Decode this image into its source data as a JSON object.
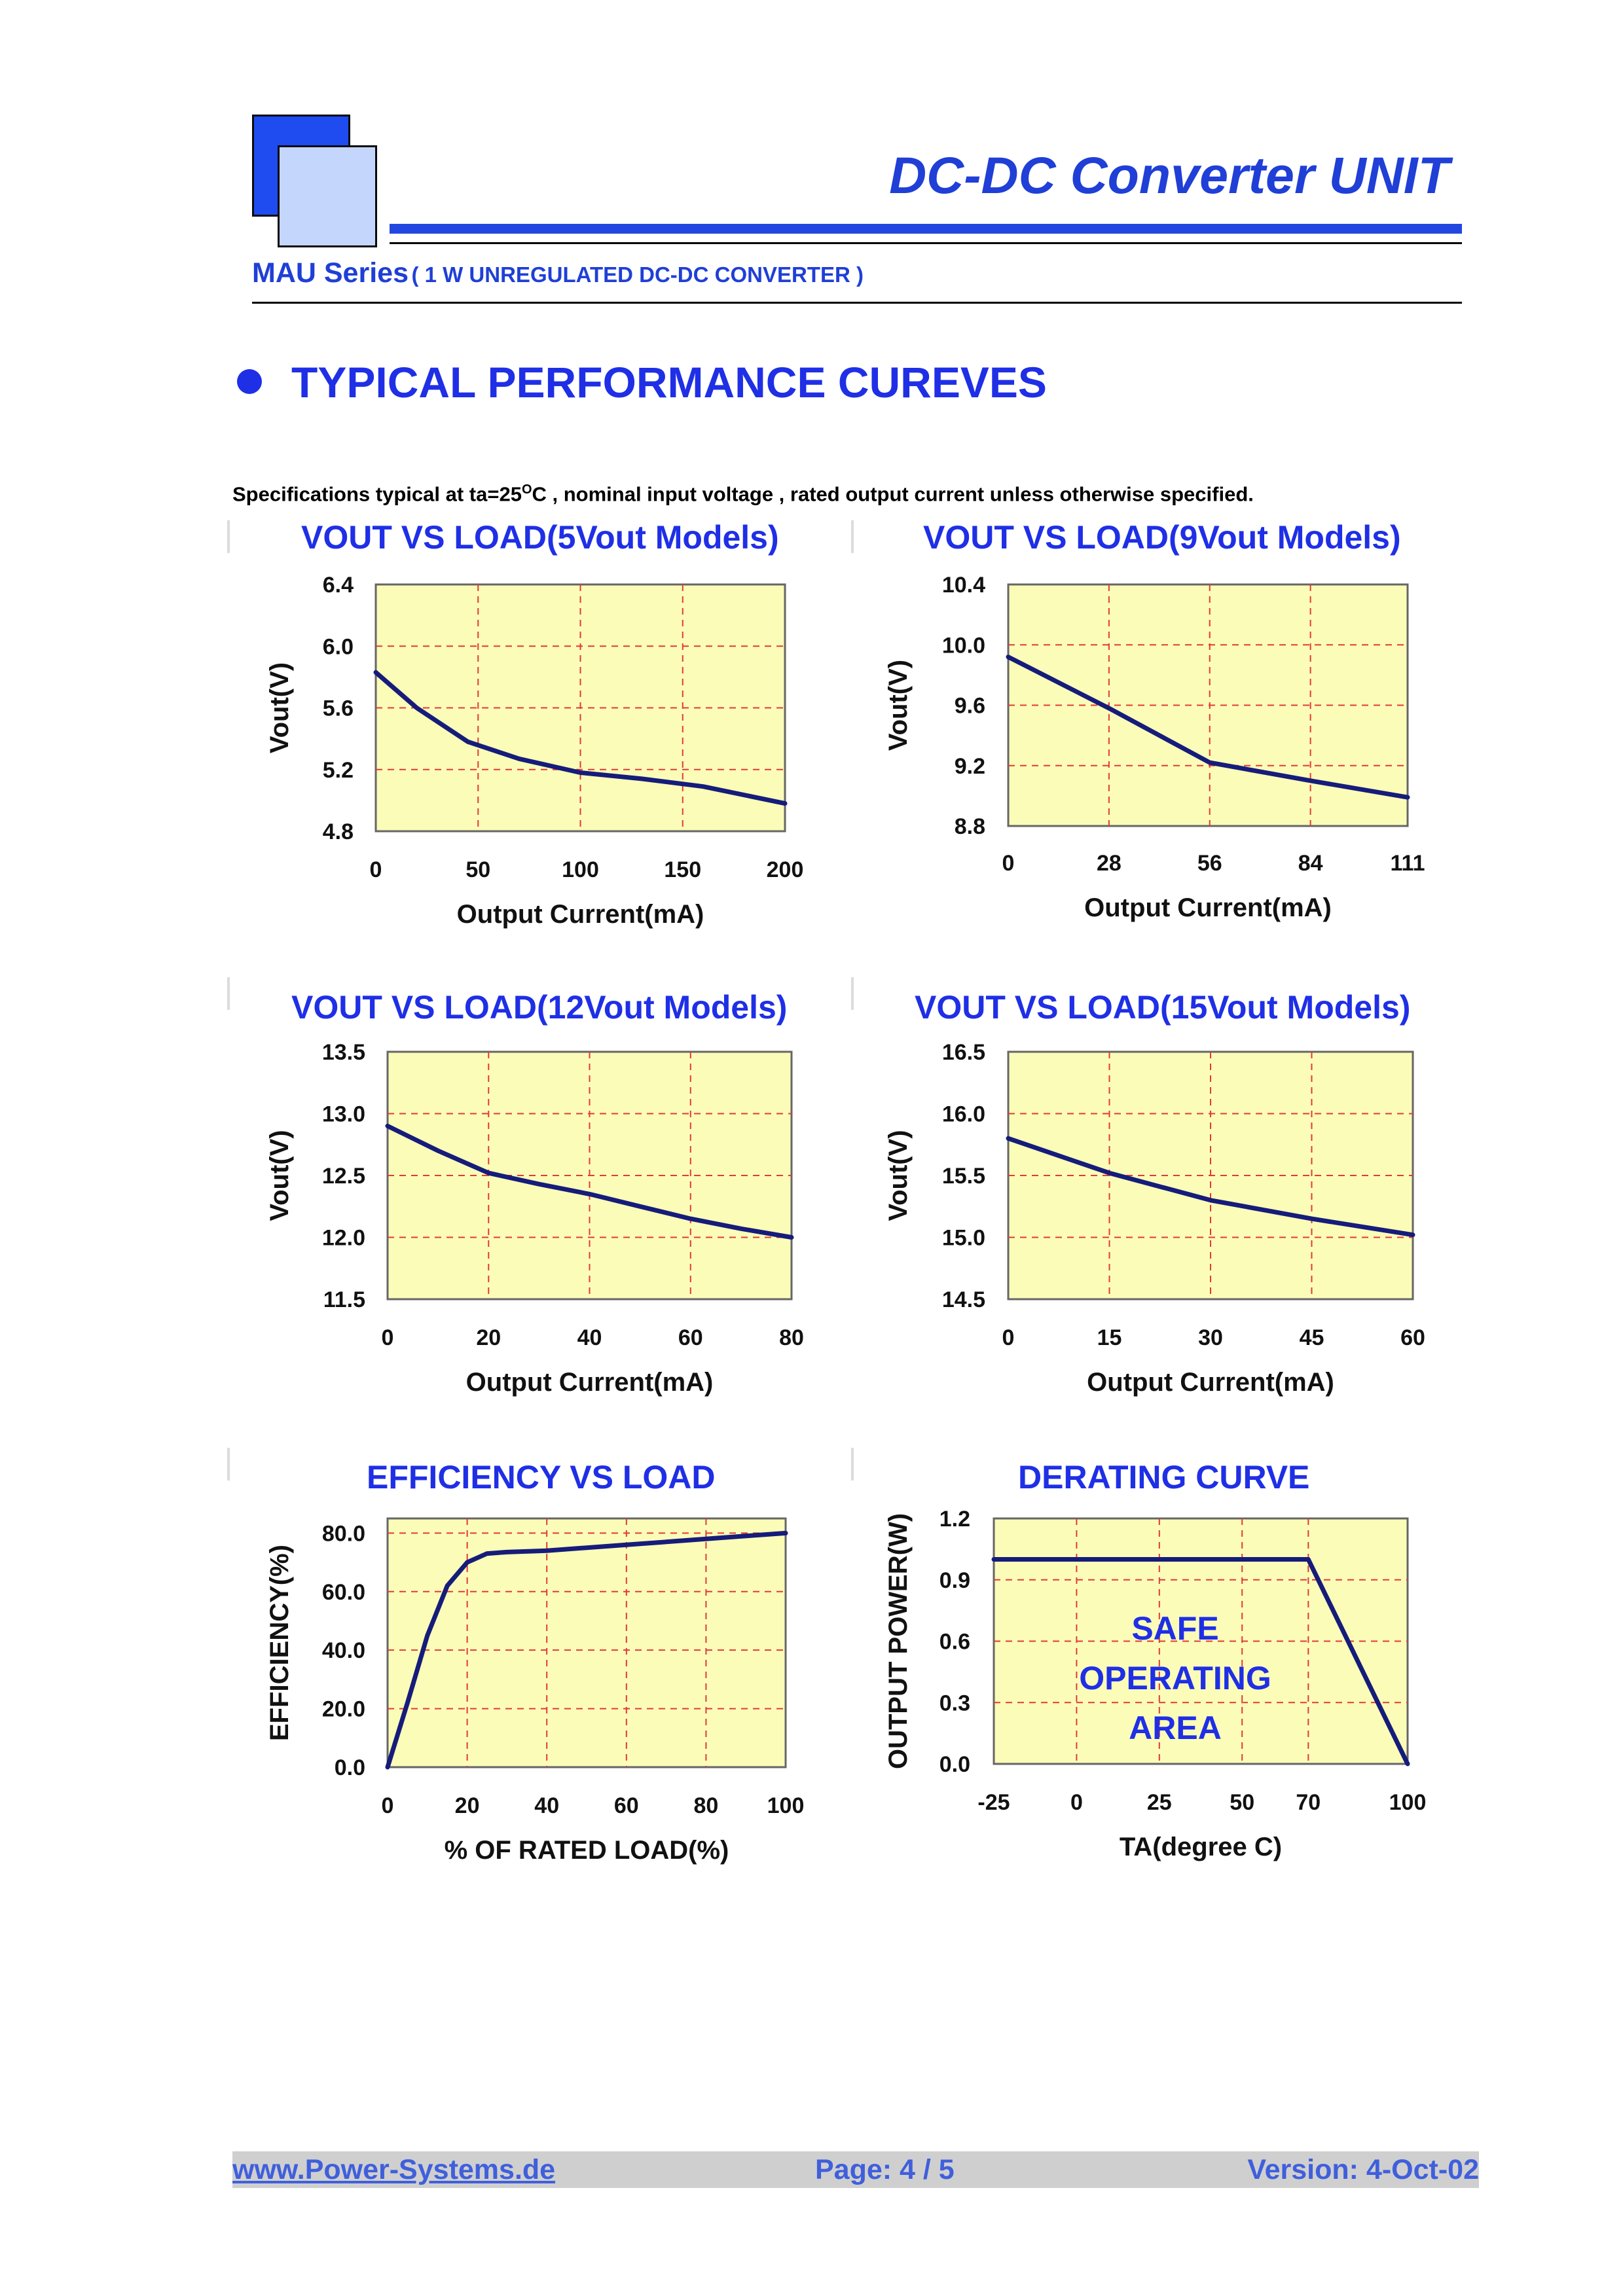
{
  "header": {
    "title": "DC-DC Converter UNIT",
    "series_name": "MAU Series",
    "series_desc": "( 1 W UNREGULATED DC-DC CONVERTER )"
  },
  "section": {
    "title": "TYPICAL PERFORMANCE CUREVES",
    "specs_pre": "Specifications typical at ta=25",
    "specs_sup": "O",
    "specs_post": "C , nominal input voltage , rated output current unless otherwise specified."
  },
  "chart_data": [
    {
      "id": "vout5",
      "type": "line",
      "title": "VOUT VS LOAD(5Vout Models)",
      "xlabel": "Output Current(mA)",
      "ylabel": "Vout(V)",
      "xlim": [
        0,
        200
      ],
      "ylim": [
        4.8,
        6.4
      ],
      "xticks": [
        "0",
        "50",
        "100",
        "150",
        "200"
      ],
      "yticks": [
        "6.4",
        "6.0",
        "5.6",
        "5.2",
        "4.8"
      ],
      "x": [
        0,
        20,
        45,
        70,
        100,
        130,
        160,
        200
      ],
      "y": [
        5.83,
        5.6,
        5.38,
        5.27,
        5.18,
        5.14,
        5.09,
        4.98
      ]
    },
    {
      "id": "vout9",
      "type": "line",
      "title": "VOUT VS LOAD(9Vout Models)",
      "xlabel": "Output Current(mA)",
      "ylabel": "Vout(V)",
      "xlim": [
        0,
        111
      ],
      "ylim": [
        8.8,
        10.4
      ],
      "xticks": [
        "0",
        "28",
        "56",
        "84",
        "111"
      ],
      "yticks": [
        "10.4",
        "10.0",
        "9.6",
        "9.2",
        "8.8"
      ],
      "x": [
        0,
        28,
        56,
        84,
        111
      ],
      "y": [
        9.92,
        9.58,
        9.22,
        9.1,
        8.99
      ]
    },
    {
      "id": "vout12",
      "type": "line",
      "title": "VOUT VS LOAD(12Vout Models)",
      "xlabel": "Output Current(mA)",
      "ylabel": "Vout(V)",
      "xlim": [
        0,
        80
      ],
      "ylim": [
        11.5,
        13.5
      ],
      "xticks": [
        "0",
        "20",
        "40",
        "60",
        "80"
      ],
      "yticks": [
        "13.5",
        "13.0",
        "12.5",
        "12.0",
        "11.5"
      ],
      "x": [
        0,
        10,
        20,
        30,
        40,
        50,
        60,
        70,
        80
      ],
      "y": [
        12.9,
        12.7,
        12.52,
        12.43,
        12.35,
        12.25,
        12.15,
        12.07,
        12.0
      ]
    },
    {
      "id": "vout15",
      "type": "line",
      "title": "VOUT VS LOAD(15Vout Models)",
      "xlabel": "Output Current(mA)",
      "ylabel": "Vout(V)",
      "xlim": [
        0,
        60
      ],
      "ylim": [
        14.5,
        16.5
      ],
      "xticks": [
        "0",
        "15",
        "30",
        "45",
        "60"
      ],
      "yticks": [
        "16.5",
        "16.0",
        "15.5",
        "15.0",
        "14.5"
      ],
      "x": [
        0,
        15,
        30,
        45,
        60
      ],
      "y": [
        15.8,
        15.52,
        15.3,
        15.15,
        15.02
      ]
    },
    {
      "id": "eff",
      "type": "line",
      "title": "EFFICIENCY VS LOAD",
      "xlabel": "% OF RATED LOAD(%)",
      "ylabel": "EFFICIENCY(%)",
      "xlim": [
        0,
        100
      ],
      "ylim": [
        0,
        85
      ],
      "yticks_values": [
        80,
        60,
        40,
        20,
        0
      ],
      "xticks": [
        "0",
        "20",
        "40",
        "60",
        "80",
        "100"
      ],
      "yticks": [
        "80.0",
        "60.0",
        "40.0",
        "20.0",
        "0.0"
      ],
      "x": [
        0,
        5,
        10,
        15,
        20,
        25,
        30,
        40,
        50,
        60,
        70,
        80,
        90,
        100
      ],
      "y": [
        0,
        22,
        45,
        62,
        70,
        73,
        73.5,
        74,
        75,
        76,
        77,
        78,
        79,
        80
      ]
    },
    {
      "id": "derate",
      "type": "line",
      "title": "DERATING CURVE",
      "xlabel": "TA(degree C)",
      "ylabel": "OUTPUT POWER(W)",
      "xlim": [
        -25,
        100
      ],
      "ylim": [
        0,
        1.2
      ],
      "xticks": [
        "-25",
        "0",
        "25",
        "50",
        "70",
        "100"
      ],
      "xtick_values": [
        -25,
        0,
        25,
        50,
        70,
        100
      ],
      "yticks": [
        "1.2",
        "0.9",
        "0.6",
        "0.3",
        "0.0"
      ],
      "x": [
        -25,
        70,
        100
      ],
      "y": [
        1.0,
        1.0,
        0.0
      ],
      "annotation": [
        "SAFE",
        "OPERATING",
        "AREA"
      ]
    }
  ],
  "footer": {
    "url": "www.Power-Systems.de",
    "page": "Page: 4 / 5",
    "version": "Version: 4-Oct-02"
  }
}
